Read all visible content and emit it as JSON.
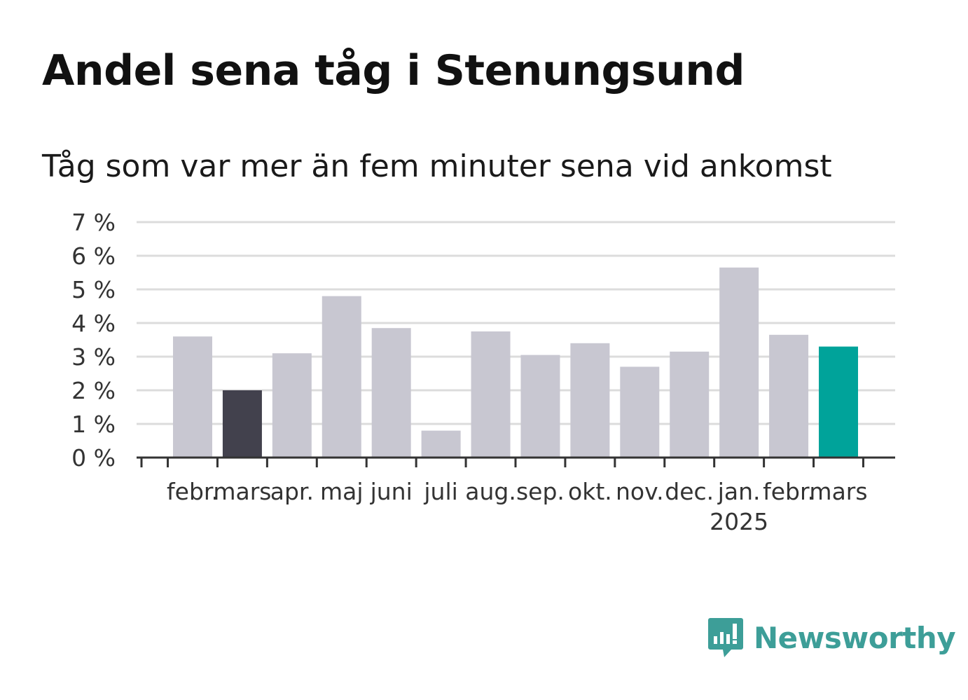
{
  "title": "Andel sena tåg i Stenungsund",
  "subtitle": "Tåg som var mer än fem minuter sena vid ankomst",
  "logo": {
    "text": "Newsworthy",
    "icon": "bar-chart-speech-bubble-icon",
    "color": "#3d9e98"
  },
  "chart_data": {
    "type": "bar",
    "ylim": [
      0,
      7
    ],
    "yticks": [
      0,
      1,
      2,
      3,
      4,
      5,
      6,
      7
    ],
    "ytick_suffix": " %",
    "grid": true,
    "categories": [
      "febr.",
      "mars",
      "apr.",
      "maj",
      "juni",
      "juli",
      "aug.",
      "sep.",
      "okt.",
      "nov.",
      "dec.",
      "jan.",
      "febr.",
      "mars"
    ],
    "year_label": {
      "text": "2025",
      "category_index": 11
    },
    "values": [
      3.6,
      2.0,
      3.1,
      4.8,
      3.85,
      0.8,
      3.75,
      3.05,
      3.4,
      2.7,
      3.15,
      5.65,
      3.65,
      3.3
    ],
    "colors": {
      "default": "#c8c7d1",
      "highlight_prior": "#42414d",
      "highlight_current": "#00a39a"
    },
    "highlight_prior_index": 1,
    "highlight_current_index": 13
  }
}
